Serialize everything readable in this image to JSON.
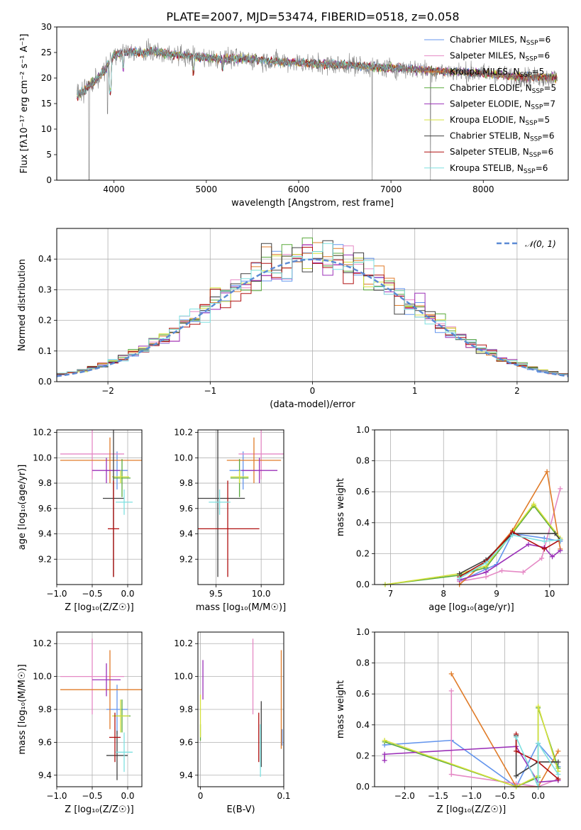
{
  "figure": {
    "title": "PLATE=2007, MJD=53474, FIBERID=0518, z=0.058"
  },
  "chart_data": [
    {
      "id": "spectrum",
      "type": "line",
      "xlabel": "wavelength [Angstrom, rest frame]",
      "ylabel": "Flux [fλ10⁻¹⁷ erg cm⁻² s⁻¹ A⁻¹]",
      "xlim": [
        3380,
        8920
      ],
      "ylim": [
        0,
        30
      ],
      "xticks": [
        4000,
        5000,
        6000,
        7000,
        8000
      ],
      "yticks": [
        0,
        5,
        10,
        15,
        20,
        25,
        30
      ],
      "legend_position": "top-right",
      "continuum": {
        "x": [
          3600,
          3700,
          3800,
          3900,
          4000,
          4100,
          4200,
          4300,
          4400,
          4500,
          4600,
          4800,
          5000,
          5200,
          5400,
          5600,
          5800,
          6000,
          6200,
          6400,
          6600,
          6800,
          7000,
          7200,
          7400,
          7600,
          7800,
          8000,
          8200,
          8400,
          8600,
          8800
        ],
        "y": [
          16.5,
          18.0,
          19.5,
          21.5,
          24.5,
          25.0,
          25.2,
          24.8,
          25.3,
          25.0,
          24.7,
          24.3,
          24.0,
          23.8,
          23.8,
          23.5,
          23.2,
          23.0,
          22.8,
          22.7,
          22.5,
          22.2,
          22.0,
          21.8,
          21.5,
          21.3,
          21.1,
          20.9,
          20.5,
          20.2,
          20.1,
          20.0
        ]
      },
      "series": [
        {
          "name": "Chabrier MILES, N_SSP=6",
          "label_prefix": "Chabrier MILES, N",
          "label_suffix": "=6",
          "color": "#6495ed"
        },
        {
          "name": "Salpeter MILES, N_SSP=6",
          "label_prefix": "Salpeter MILES, N",
          "label_suffix": "=6",
          "color": "#e589c5"
        },
        {
          "name": "Kroupa MILES, N_SSP=5",
          "label_prefix": "Kroupa MILES, N",
          "label_suffix": "=5",
          "color": "#e07b28"
        },
        {
          "name": "Chabrier ELODIE, N_SSP=5",
          "label_prefix": "Chabrier ELODIE, N",
          "label_suffix": "=5",
          "color": "#5aaa3c"
        },
        {
          "name": "Salpeter ELODIE, N_SSP=7",
          "label_prefix": "Salpeter ELODIE, N",
          "label_suffix": "=7",
          "color": "#9b30b8"
        },
        {
          "name": "Kroupa ELODIE, N_SSP=5",
          "label_prefix": "Kroupa ELODIE, N",
          "label_suffix": "=5",
          "color": "#d4e03c"
        },
        {
          "name": "Chabrier STELIB, N_SSP=6",
          "label_prefix": "Chabrier STELIB, N",
          "label_suffix": "=6",
          "color": "#404040"
        },
        {
          "name": "Salpeter STELIB, N_SSP=6",
          "label_prefix": "Salpeter STELIB, N",
          "label_suffix": "=6",
          "color": "#b01010"
        },
        {
          "name": "Kroupa STELIB, N_SSP=6",
          "label_prefix": "Kroupa STELIB, N",
          "label_suffix": "=6",
          "color": "#7ee0e0"
        }
      ],
      "legend_subscript": "SSP",
      "data_color": "#808080"
    },
    {
      "id": "residual-hist",
      "type": "line",
      "xlabel": "(data-model)/error",
      "ylabel": "Normed distribution",
      "xlim": [
        -2.5,
        2.5
      ],
      "ylim": [
        0,
        0.5
      ],
      "xticks": [
        -2,
        -1,
        0,
        1,
        2
      ],
      "xtick_labels": [
        "−2",
        "−1",
        "0",
        "1",
        "2"
      ],
      "yticks": [
        0.0,
        0.1,
        0.2,
        0.3,
        0.4
      ],
      "ytick_labels": [
        "0.0",
        "0.1",
        "0.2",
        "0.3",
        "0.4"
      ],
      "legend_position": "top-right",
      "reference": {
        "name": "N(0,1)",
        "label": "𝒩(0, 1)",
        "color": "#5b8ad4",
        "mean": 0,
        "sigma": 1
      },
      "bin_width": 0.1
    },
    {
      "id": "age-vs-Z",
      "type": "scatter",
      "xlabel": "Z [log₁₀(Z/Z☉)]",
      "ylabel": "age  [log₁₀(age/yr)]",
      "xlim": [
        -1.0,
        0.2
      ],
      "ylim": [
        9.0,
        10.22
      ],
      "xticks": [
        -1.0,
        -0.5,
        0.0
      ],
      "xtick_labels": [
        "−1.0",
        "−0.5",
        "0.0"
      ],
      "yticks": [
        9.2,
        9.4,
        9.6,
        9.8,
        10.0,
        10.2
      ],
      "points": [
        {
          "x": -0.15,
          "xerr": 0.15,
          "y": 9.9,
          "yerr": 0.15,
          "color": "#6495ed"
        },
        {
          "x": -0.5,
          "xerr": 0.45,
          "y": 10.03,
          "yerr": 0.2,
          "color": "#e589c5"
        },
        {
          "x": -0.25,
          "xerr": 0.7,
          "y": 9.98,
          "yerr": 0.18,
          "color": "#e07b28"
        },
        {
          "x": -0.08,
          "xerr": 0.12,
          "y": 9.84,
          "yerr": 0.15,
          "color": "#5aaa3c"
        },
        {
          "x": -0.3,
          "xerr": 0.2,
          "y": 9.9,
          "yerr": 0.1,
          "color": "#9b30b8"
        },
        {
          "x": -0.1,
          "xerr": 0.12,
          "y": 9.85,
          "yerr": 0.05,
          "color": "#d4e03c"
        },
        {
          "x": -0.2,
          "xerr": 0.15,
          "y": 9.68,
          "yerr": 0.62,
          "color": "#404040"
        },
        {
          "x": -0.2,
          "xerr": 0.08,
          "y": 9.44,
          "yerr": 0.38,
          "color": "#b01010"
        },
        {
          "x": -0.05,
          "xerr": 0.12,
          "y": 9.65,
          "yerr": 0.1,
          "color": "#7ee0e0"
        }
      ]
    },
    {
      "id": "age-vs-mass",
      "type": "scatter",
      "xlabel": "mass [log₁₀(M/M☉)]",
      "ylabel": "",
      "xlim": [
        9.3,
        10.25
      ],
      "ylim": [
        9.0,
        10.22
      ],
      "xticks": [
        9.5,
        10.0
      ],
      "xtick_labels": [
        "9.5",
        "10.0"
      ],
      "yticks": [
        9.2,
        9.4,
        9.6,
        9.8,
        10.0,
        10.2
      ],
      "points": [
        {
          "x": 9.8,
          "xerr": 0.15,
          "y": 9.9,
          "yerr": 0.15,
          "color": "#6495ed"
        },
        {
          "x": 10.0,
          "xerr": 0.25,
          "y": 10.03,
          "yerr": 0.2,
          "color": "#e589c5"
        },
        {
          "x": 9.92,
          "xerr": 0.3,
          "y": 9.98,
          "yerr": 0.18,
          "color": "#e07b28"
        },
        {
          "x": 9.76,
          "xerr": 0.1,
          "y": 9.84,
          "yerr": 0.15,
          "color": "#5aaa3c"
        },
        {
          "x": 9.98,
          "xerr": 0.2,
          "y": 9.9,
          "yerr": 0.1,
          "color": "#9b30b8"
        },
        {
          "x": 9.76,
          "xerr": 0.1,
          "y": 9.85,
          "yerr": 0.05,
          "color": "#d4e03c"
        },
        {
          "x": 9.52,
          "xerr": 0.3,
          "y": 9.68,
          "yerr": 0.62,
          "color": "#404040"
        },
        {
          "x": 9.63,
          "xerr": 0.35,
          "y": 9.44,
          "yerr": 0.38,
          "color": "#b01010"
        },
        {
          "x": 9.54,
          "xerr": 0.12,
          "y": 9.65,
          "yerr": 0.1,
          "color": "#7ee0e0"
        }
      ]
    },
    {
      "id": "weight-vs-age",
      "type": "line",
      "xlabel": "age  [log₁₀(age/yr)]",
      "ylabel": "mass weight",
      "xlim": [
        6.7,
        10.35
      ],
      "ylim": [
        0,
        1.0
      ],
      "xticks": [
        7,
        8,
        9,
        10
      ],
      "yticks": [
        0.0,
        0.2,
        0.4,
        0.6,
        0.8,
        1.0
      ],
      "ytick_labels": [
        "0.0",
        "0.2",
        "0.4",
        "0.6",
        "0.8",
        "1.0"
      ],
      "series": [
        {
          "color": "#6495ed",
          "x": [
            8.3,
            8.8,
            9.0,
            9.3,
            9.9,
            10.2
          ],
          "y": [
            0.02,
            0.1,
            0.13,
            0.33,
            0.3,
            0.28
          ]
        },
        {
          "color": "#e589c5",
          "x": [
            8.3,
            8.8,
            9.1,
            9.5,
            9.85,
            10.2
          ],
          "y": [
            0.02,
            0.05,
            0.09,
            0.08,
            0.17,
            0.62
          ]
        },
        {
          "color": "#e07b28",
          "x": [
            8.3,
            8.8,
            9.3,
            9.95,
            10.2
          ],
          "y": [
            0.0,
            0.15,
            0.35,
            0.73,
            0.23
          ]
        },
        {
          "color": "#5aaa3c",
          "x": [
            6.9,
            8.3,
            8.8,
            9.7,
            10.2
          ],
          "y": [
            0.0,
            0.06,
            0.11,
            0.51,
            0.29
          ]
        },
        {
          "color": "#9b30b8",
          "x": [
            8.3,
            8.8,
            9.6,
            9.9,
            10.05,
            10.2
          ],
          "y": [
            0.03,
            0.08,
            0.26,
            0.24,
            0.18,
            0.22
          ]
        },
        {
          "color": "#d4e03c",
          "x": [
            6.9,
            8.3,
            8.8,
            9.7,
            10.2
          ],
          "y": [
            0.0,
            0.07,
            0.12,
            0.52,
            0.3
          ]
        },
        {
          "color": "#404040",
          "x": [
            8.3,
            8.8,
            9.3,
            10.1,
            10.2
          ],
          "y": [
            0.07,
            0.16,
            0.33,
            0.33,
            0.29
          ]
        },
        {
          "color": "#b01010",
          "x": [
            8.3,
            8.8,
            9.3,
            9.9,
            10.2
          ],
          "y": [
            0.05,
            0.15,
            0.34,
            0.23,
            0.29
          ]
        },
        {
          "color": "#7ee0e0",
          "x": [
            8.3,
            8.8,
            9.3,
            9.9,
            10.2
          ],
          "y": [
            0.04,
            0.14,
            0.32,
            0.28,
            0.29
          ]
        }
      ]
    },
    {
      "id": "mass-vs-Z",
      "type": "scatter",
      "xlabel": "Z [log₁₀(Z/Z☉)]",
      "ylabel": "mass [log₁₀(M/M☉)]",
      "xlim": [
        -1.0,
        0.2
      ],
      "ylim": [
        9.33,
        10.27
      ],
      "xticks": [
        -1.0,
        -0.5,
        0.0
      ],
      "xtick_labels": [
        "−1.0",
        "−0.5",
        "0.0"
      ],
      "yticks": [
        9.4,
        9.6,
        9.8,
        10.0,
        10.2
      ],
      "points": [
        {
          "x": -0.15,
          "xerr": 0.15,
          "y": 9.8,
          "yerr": 0.15,
          "color": "#6495ed"
        },
        {
          "x": -0.5,
          "xerr": 0.45,
          "y": 10.0,
          "yerr": 0.23,
          "color": "#e589c5"
        },
        {
          "x": -0.25,
          "xerr": 0.7,
          "y": 9.92,
          "yerr": 0.24,
          "color": "#e07b28"
        },
        {
          "x": -0.08,
          "xerr": 0.12,
          "y": 9.76,
          "yerr": 0.1,
          "color": "#5aaa3c"
        },
        {
          "x": -0.3,
          "xerr": 0.2,
          "y": 9.98,
          "yerr": 0.1,
          "color": "#9b30b8"
        },
        {
          "x": -0.1,
          "xerr": 0.12,
          "y": 9.76,
          "yerr": 0.1,
          "color": "#d4e03c"
        },
        {
          "x": -0.15,
          "xerr": 0.15,
          "y": 9.52,
          "yerr": 0.15,
          "color": "#404040"
        },
        {
          "x": -0.18,
          "xerr": 0.08,
          "y": 9.63,
          "yerr": 0.15,
          "color": "#b01010"
        },
        {
          "x": -0.05,
          "xerr": 0.12,
          "y": 9.54,
          "yerr": 0.12,
          "color": "#7ee0e0"
        }
      ]
    },
    {
      "id": "mass-vs-ebv",
      "type": "scatter",
      "xlabel": "E(B-V)",
      "ylabel": "",
      "xlim": [
        -0.003,
        0.1
      ],
      "ylim": [
        9.33,
        10.27
      ],
      "xticks": [
        0.0,
        0.1
      ],
      "xtick_labels": [
        "0",
        "0.1"
      ],
      "yticks": [
        9.4,
        9.6,
        9.8,
        10.0,
        10.2
      ],
      "points": [
        {
          "x": 0.098,
          "y": 9.63,
          "yerr": 0.05,
          "color": "#6495ed"
        },
        {
          "x": 0.063,
          "y": 10.0,
          "yerr": 0.23,
          "color": "#e589c5"
        },
        {
          "x": 0.097,
          "y": 9.86,
          "yerr": 0.3,
          "color": "#e07b28"
        },
        {
          "x": 0.0,
          "y": 9.66,
          "yerr": 0.05,
          "color": "#5aaa3c"
        },
        {
          "x": 0.003,
          "y": 9.98,
          "yerr": 0.12,
          "color": "#9b30b8"
        },
        {
          "x": 0.0,
          "y": 9.76,
          "yerr": 0.13,
          "color": "#d4e03c"
        },
        {
          "x": 0.073,
          "y": 9.65,
          "yerr": 0.2,
          "color": "#404040"
        },
        {
          "x": 0.07,
          "y": 9.63,
          "yerr": 0.15,
          "color": "#b01010"
        },
        {
          "x": 0.072,
          "y": 9.55,
          "yerr": 0.16,
          "color": "#7ee0e0"
        }
      ]
    },
    {
      "id": "weight-vs-Z",
      "type": "line",
      "xlabel": "Z [log₁₀(Z/Z☉)]",
      "ylabel": "mass weight",
      "xlim": [
        -2.45,
        0.45
      ],
      "ylim": [
        0,
        1.0
      ],
      "xticks": [
        -2.0,
        -1.5,
        -1.0,
        -0.5,
        0.0
      ],
      "xtick_labels": [
        "−2.0",
        "−1.5",
        "−1.0",
        "−0.5",
        "0.0"
      ],
      "yticks": [
        0.0,
        0.2,
        0.4,
        0.6,
        0.8,
        1.0
      ],
      "ytick_labels": [
        "0.0",
        "0.2",
        "0.4",
        "0.6",
        "0.8",
        "1.0"
      ],
      "series": [
        {
          "color": "#6495ed",
          "x": [
            -2.3,
            -1.3,
            -0.33,
            0.0,
            0.3
          ],
          "y": [
            0.27,
            0.3,
            0.0,
            0.28,
            0.13
          ]
        },
        {
          "color": "#e589c5",
          "x": [
            -1.3,
            -1.3,
            -0.33,
            0.0,
            0.3
          ],
          "y": [
            0.62,
            0.08,
            0.02,
            0.0,
            0.05
          ]
        },
        {
          "color": "#e07b28",
          "x": [
            -1.3,
            -0.33,
            0.0,
            0.3
          ],
          "y": [
            0.73,
            0.0,
            0.0,
            0.23
          ]
        },
        {
          "color": "#5aaa3c",
          "x": [
            -2.3,
            -0.33,
            0.0,
            0.0,
            0.3
          ],
          "y": [
            0.29,
            0.0,
            0.06,
            0.51,
            0.12
          ]
        },
        {
          "color": "#9b30b8",
          "x": [
            -2.3,
            -2.3,
            -0.33,
            0.0,
            0.3
          ],
          "y": [
            0.17,
            0.21,
            0.26,
            0.03,
            0.04
          ]
        },
        {
          "color": "#d4e03c",
          "x": [
            -2.3,
            -0.33,
            0.0,
            0.0,
            0.3
          ],
          "y": [
            0.3,
            0.0,
            0.07,
            0.52,
            0.1
          ]
        },
        {
          "color": "#404040",
          "x": [
            -0.33,
            -0.33,
            0.0,
            0.3
          ],
          "y": [
            0.33,
            0.07,
            0.16,
            0.16
          ]
        },
        {
          "color": "#b01010",
          "x": [
            -0.33,
            -0.33,
            0.0,
            0.3
          ],
          "y": [
            0.34,
            0.23,
            0.16,
            0.05
          ]
        },
        {
          "color": "#7ee0e0",
          "x": [
            -0.33,
            0.0,
            0.0,
            0.3
          ],
          "y": [
            0.32,
            0.0,
            0.28,
            0.08
          ]
        }
      ]
    }
  ]
}
